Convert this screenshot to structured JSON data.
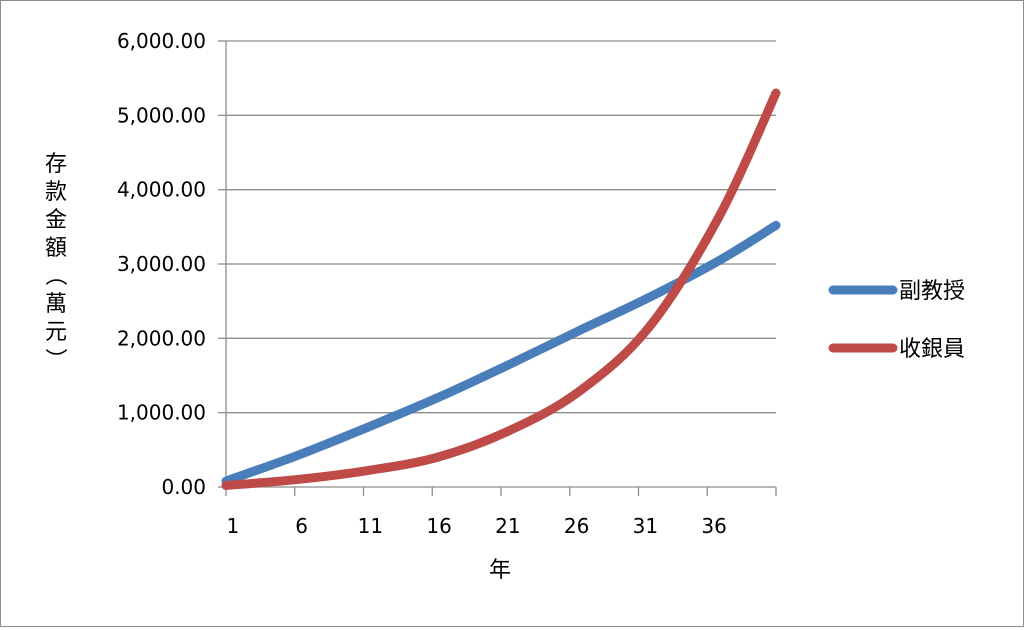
{
  "chart_data": {
    "type": "line",
    "title": "",
    "xlabel": "年",
    "ylabel": "存款金額（萬元）",
    "ylim": [
      0,
      6000
    ],
    "y_ticks": [
      "0.00",
      "1,000.00",
      "2,000.00",
      "3,000.00",
      "4,000.00",
      "5,000.00",
      "6,000.00"
    ],
    "x_ticks": [
      "1",
      "6",
      "11",
      "16",
      "21",
      "26",
      "31",
      "36"
    ],
    "grid": "horizontal",
    "legend_position": "right",
    "series": [
      {
        "name": "副教授",
        "color": "#4a7ebb",
        "x": [
          1,
          6,
          11,
          16,
          21,
          26,
          31,
          36,
          40
        ],
        "values": [
          80,
          420,
          800,
          1200,
          1640,
          2100,
          2550,
          3050,
          3520
        ]
      },
      {
        "name": "收銀員",
        "color": "#be4b48",
        "x": [
          1,
          6,
          11,
          16,
          21,
          26,
          31,
          36,
          40
        ],
        "values": [
          20,
          100,
          220,
          400,
          750,
          1280,
          2150,
          3650,
          5300
        ]
      }
    ]
  }
}
